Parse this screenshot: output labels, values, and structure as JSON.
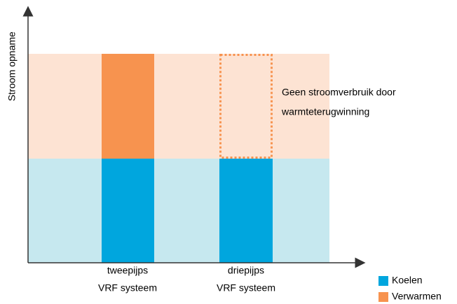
{
  "axis": {
    "y_label": "Stroom opname"
  },
  "categories": [
    [
      "tweepijps",
      "VRF systeem"
    ],
    [
      "driepijps",
      "VRF systeem"
    ]
  ],
  "annotation": [
    "Geen stroomverbruik door",
    "warmteterugwinning"
  ],
  "legend": [
    "Koelen",
    "Verwarmen"
  ]
}
